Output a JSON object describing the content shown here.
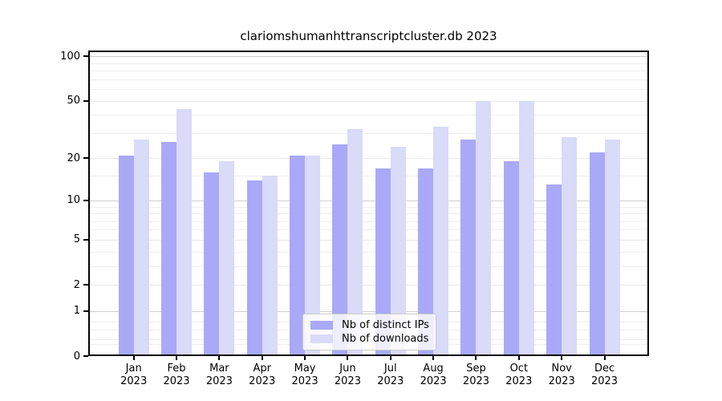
{
  "chart_data": {
    "type": "bar",
    "title": "clariomshumanhttranscriptcluster.db 2023",
    "categories": [
      "Jan",
      "Feb",
      "Mar",
      "Apr",
      "May",
      "Jun",
      "Jul",
      "Aug",
      "Sep",
      "Oct",
      "Nov",
      "Dec"
    ],
    "category_year": "2023",
    "series": [
      {
        "name": "Nb of distinct IPs",
        "color": "#a9a9f8",
        "values": [
          21,
          26,
          16,
          14,
          21,
          25,
          17,
          17,
          27,
          19,
          13,
          22
        ]
      },
      {
        "name": "Nb of downloads",
        "color": "#dadaf9",
        "values": [
          27,
          44,
          19,
          15,
          21,
          32,
          24,
          33,
          50,
          50,
          28,
          27
        ]
      }
    ],
    "scale": "log10(1+y)",
    "ylim": [
      0,
      100
    ],
    "y_ticks": [
      0,
      1,
      2,
      5,
      10,
      20,
      50,
      100
    ],
    "y_major_gridlines": [
      1,
      10,
      100
    ],
    "y_minor_gridlines": [
      0.2,
      0.3,
      0.5,
      0.7,
      2,
      3,
      4,
      6,
      7,
      8,
      9,
      15,
      30,
      40,
      60,
      70,
      80,
      90
    ],
    "grid": true,
    "legend_position": "bottom-center",
    "xlabel": "",
    "ylabel": ""
  },
  "colors": {
    "axis": "#000000",
    "gridline_major": "#d0d0d0",
    "gridline_minor": "#efefef",
    "legend_border": "#cccccc"
  }
}
